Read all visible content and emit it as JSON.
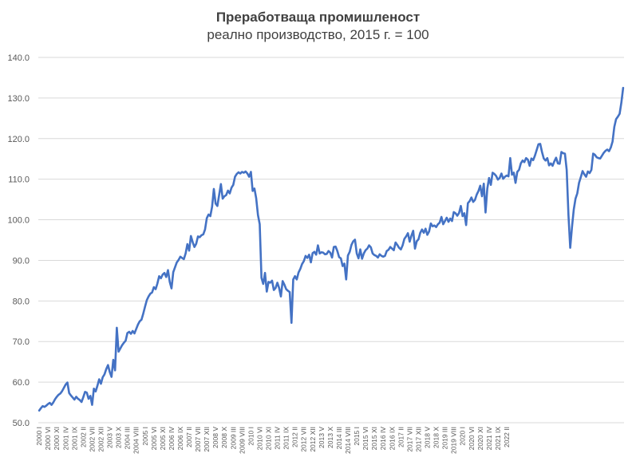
{
  "chart_data": {
    "type": "line",
    "title": "Преработваща промишленост",
    "subtitle": "реално производство, 2015 г. = 100",
    "xlabel": "",
    "ylabel": "",
    "ylim": [
      50,
      140
    ],
    "yticks": [
      "50.0",
      "60.0",
      "70.0",
      "80.0",
      "90.0",
      "100.0",
      "110.0",
      "120.0",
      "130.0",
      "140.0"
    ],
    "grid": true,
    "line_color": "#4472C4",
    "x_tick_labels": [
      "2000 I",
      "2000 VI",
      "2000 XI",
      "2001 IV",
      "2001 IX",
      "2002 II",
      "2002 VII",
      "2002 XII",
      "2003 V",
      "2003 X",
      "2004 III",
      "2004 VIII",
      "2005 I",
      "2005 VI",
      "2005 XI",
      "2006 IV",
      "2006 IX",
      "2007 II",
      "2007 VII",
      "2007 XII",
      "2008 V",
      "2008 X",
      "2009 III",
      "2009 VIII",
      "2010 I",
      "2010 VI",
      "2010 XI",
      "2011 IV",
      "2011 IX",
      "2012 II",
      "2012 VII",
      "2012 XII",
      "2013 V",
      "2013 X",
      "2014 III",
      "2014 VIII",
      "2015 I",
      "2015 VI",
      "2015 XI",
      "2016 IV",
      "2016 IX",
      "2017 II",
      "2017 VII",
      "2017 XII",
      "2018 V",
      "2018 X",
      "2019 III",
      "2019 VIII",
      "2020 I",
      "2020 VI",
      "2020 XI",
      "2021 IV",
      "2021 IX",
      "2022 II"
    ],
    "series": [
      {
        "name": "",
        "x_start": "2000 I",
        "frequency": "monthly",
        "values": [
          53.0,
          53.6,
          54.1,
          53.9,
          54.2,
          54.6,
          54.9,
          54.4,
          55.0,
          55.8,
          56.4,
          56.9,
          57.2,
          57.8,
          58.6,
          59.4,
          59.9,
          57.3,
          56.7,
          56.2,
          55.7,
          56.4,
          55.9,
          55.6,
          55.1,
          56.3,
          57.6,
          57.4,
          55.9,
          56.6,
          54.4,
          58.4,
          57.7,
          59.1,
          60.7,
          59.6,
          61.2,
          61.9,
          63.2,
          64.2,
          62.5,
          61.3,
          65.5,
          62.9,
          73.4,
          67.5,
          68.3,
          69.1,
          69.7,
          70.2,
          72.1,
          72.4,
          71.9,
          72.6,
          72.0,
          73.1,
          74.2,
          75.0,
          75.4,
          76.9,
          78.6,
          80.2,
          81.1,
          81.8,
          82.1,
          83.4,
          82.9,
          84.3,
          86.1,
          85.6,
          86.5,
          86.9,
          85.9,
          87.6,
          84.7,
          83.1,
          87.1,
          88.3,
          89.5,
          90.1,
          90.9,
          90.6,
          90.3,
          91.7,
          94.0,
          92.4,
          96.0,
          94.5,
          93.3,
          94.1,
          95.9,
          95.7,
          96.2,
          96.4,
          97.6,
          100.4,
          101.3,
          100.9,
          103.2,
          107.6,
          104.0,
          103.4,
          106.1,
          108.8,
          105.2,
          105.8,
          106.1,
          107.2,
          106.5,
          107.9,
          108.6,
          110.6,
          111.3,
          111.7,
          111.4,
          111.8,
          111.6,
          111.9,
          111.4,
          110.6,
          111.8,
          107.1,
          107.7,
          105.3,
          101.2,
          98.9,
          85.7,
          84.2,
          86.9,
          82.3,
          84.7,
          84.5,
          85.0,
          82.7,
          83.2,
          84.5,
          83.2,
          81.1,
          84.9,
          84.0,
          82.9,
          82.5,
          82.2,
          74.6,
          85.3,
          86.1,
          85.3,
          87.0,
          87.9,
          89.1,
          89.8,
          91.1,
          90.6,
          91.4,
          89.5,
          91.8,
          92.1,
          91.4,
          93.7,
          91.7,
          92.0,
          91.9,
          91.5,
          91.6,
          92.3,
          91.9,
          90.7,
          93.3,
          93.4,
          92.3,
          90.8,
          90.5,
          88.6,
          89.2,
          85.3,
          91.2,
          92.1,
          93.8,
          94.7,
          95.1,
          91.7,
          90.5,
          92.7,
          90.4,
          91.7,
          92.5,
          92.9,
          93.7,
          93.2,
          91.7,
          91.3,
          91.1,
          90.7,
          91.5,
          91.1,
          90.9,
          91.1,
          92.3,
          92.6,
          93.3,
          92.9,
          92.5,
          94.4,
          93.8,
          93.1,
          92.7,
          93.7,
          95.3,
          95.9,
          96.7,
          94.6,
          96.1,
          97.3,
          92.9,
          94.7,
          95.2,
          96.8,
          97.6,
          96.8,
          97.8,
          96.3,
          97.1,
          99.1,
          98.4,
          98.6,
          98.2,
          98.9,
          99.3,
          100.7,
          98.9,
          99.7,
          100.5,
          99.5,
          100.3,
          99.7,
          101.9,
          101.6,
          101.0,
          101.7,
          103.4,
          100.9,
          101.6,
          98.7,
          104.1,
          104.6,
          105.5,
          104.4,
          104.9,
          106.2,
          107.1,
          108.4,
          105.8,
          108.9,
          101.8,
          107.7,
          110.3,
          108.6,
          111.6,
          111.3,
          110.8,
          109.9,
          110.3,
          111.4,
          110.1,
          110.6,
          110.9,
          110.7,
          115.2,
          111.1,
          111.6,
          109.1,
          111.8,
          112.3,
          113.9,
          114.6,
          114.2,
          115.2,
          114.8,
          113.3,
          115.1,
          114.7,
          115.8,
          117.2,
          118.6,
          118.7,
          116.7,
          115.1,
          114.6,
          115.2,
          113.4,
          113.9,
          113.3,
          114.4,
          115.3,
          113.9,
          113.8,
          116.7,
          116.4,
          116.3,
          112.3,
          101.2,
          93.1,
          98.2,
          102.5,
          105.2,
          106.5,
          109.1,
          110.5,
          112.0,
          111.2,
          110.6,
          111.9,
          111.5,
          112.3,
          116.3,
          116.0,
          115.4,
          115.2,
          115.1,
          115.8,
          116.5,
          117.0,
          117.3,
          116.9,
          117.8,
          119.3,
          122.9,
          124.8,
          125.4,
          126.1,
          128.9,
          132.5
        ]
      }
    ]
  }
}
